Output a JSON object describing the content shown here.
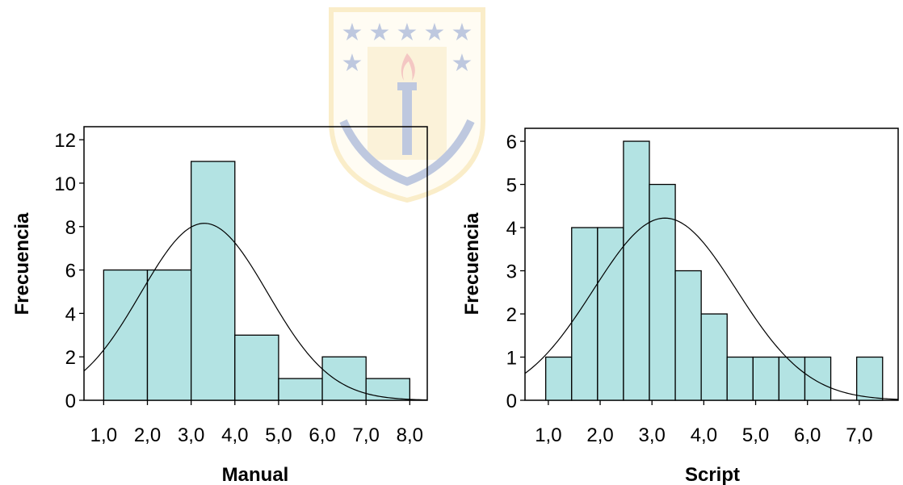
{
  "colors": {
    "bar_fill": "#b3e3e3",
    "bar_stroke": "#000000",
    "curve": "#000000",
    "emblem_gold": "#f0c040",
    "emblem_blue": "#1a3d8f",
    "emblem_red": "#d93a2b"
  },
  "watermark": {
    "icon": "university-shield-emblem"
  },
  "chart_data": [
    {
      "type": "bar",
      "subtype": "histogram-with-normal-curve",
      "xlabel": "Manual",
      "ylabel": "Frecuencia",
      "grid": false,
      "xlim": [
        0.55,
        8.4
      ],
      "ylim": [
        0,
        12.6
      ],
      "yticks": [
        0,
        2,
        4,
        6,
        8,
        10,
        12
      ],
      "ytick_labels": [
        "0",
        "2",
        "4",
        "6",
        "8",
        "10",
        "12"
      ],
      "xticks": [
        1,
        2,
        3,
        4,
        5,
        6,
        7,
        8
      ],
      "xtick_labels": [
        "1,0",
        "2,0",
        "3,0",
        "4,0",
        "5,0",
        "6,0",
        "7,0",
        "8,0"
      ],
      "bins": [
        {
          "start": 1,
          "end": 2,
          "count": 6
        },
        {
          "start": 2,
          "end": 3,
          "count": 6
        },
        {
          "start": 3,
          "end": 4,
          "count": 11
        },
        {
          "start": 4,
          "end": 5,
          "count": 3
        },
        {
          "start": 5,
          "end": 6,
          "count": 1
        },
        {
          "start": 6,
          "end": 7,
          "count": 2
        },
        {
          "start": 7,
          "end": 8,
          "count": 1
        }
      ],
      "normal_curve": {
        "mean": 3.3,
        "sd": 1.45,
        "peak": 8.15
      }
    },
    {
      "type": "bar",
      "subtype": "histogram-with-normal-curve",
      "xlabel": "Script",
      "ylabel": "Frecuencia",
      "grid": false,
      "xlim": [
        0.55,
        7.75
      ],
      "ylim": [
        0,
        6.3
      ],
      "yticks": [
        0,
        1,
        2,
        3,
        4,
        5,
        6
      ],
      "ytick_labels": [
        "0",
        "1",
        "2",
        "3",
        "4",
        "5",
        "6"
      ],
      "xticks": [
        1,
        2,
        3,
        4,
        5,
        6,
        7
      ],
      "xtick_labels": [
        "1,0",
        "2,0",
        "3,0",
        "4,0",
        "5,0",
        "6,0",
        "7,0"
      ],
      "bins": [
        {
          "start": 0.95,
          "end": 1.45,
          "count": 1
        },
        {
          "start": 1.45,
          "end": 1.95,
          "count": 4
        },
        {
          "start": 1.95,
          "end": 2.45,
          "count": 4
        },
        {
          "start": 2.45,
          "end": 2.95,
          "count": 6
        },
        {
          "start": 2.95,
          "end": 3.45,
          "count": 5
        },
        {
          "start": 3.45,
          "end": 3.95,
          "count": 3
        },
        {
          "start": 3.95,
          "end": 4.45,
          "count": 2
        },
        {
          "start": 4.45,
          "end": 4.95,
          "count": 1
        },
        {
          "start": 4.95,
          "end": 5.45,
          "count": 1
        },
        {
          "start": 5.45,
          "end": 5.95,
          "count": 1
        },
        {
          "start": 5.95,
          "end": 6.45,
          "count": 1
        },
        {
          "start": 6.95,
          "end": 7.45,
          "count": 1
        }
      ],
      "normal_curve": {
        "mean": 3.25,
        "sd": 1.38,
        "peak": 4.22
      }
    }
  ]
}
